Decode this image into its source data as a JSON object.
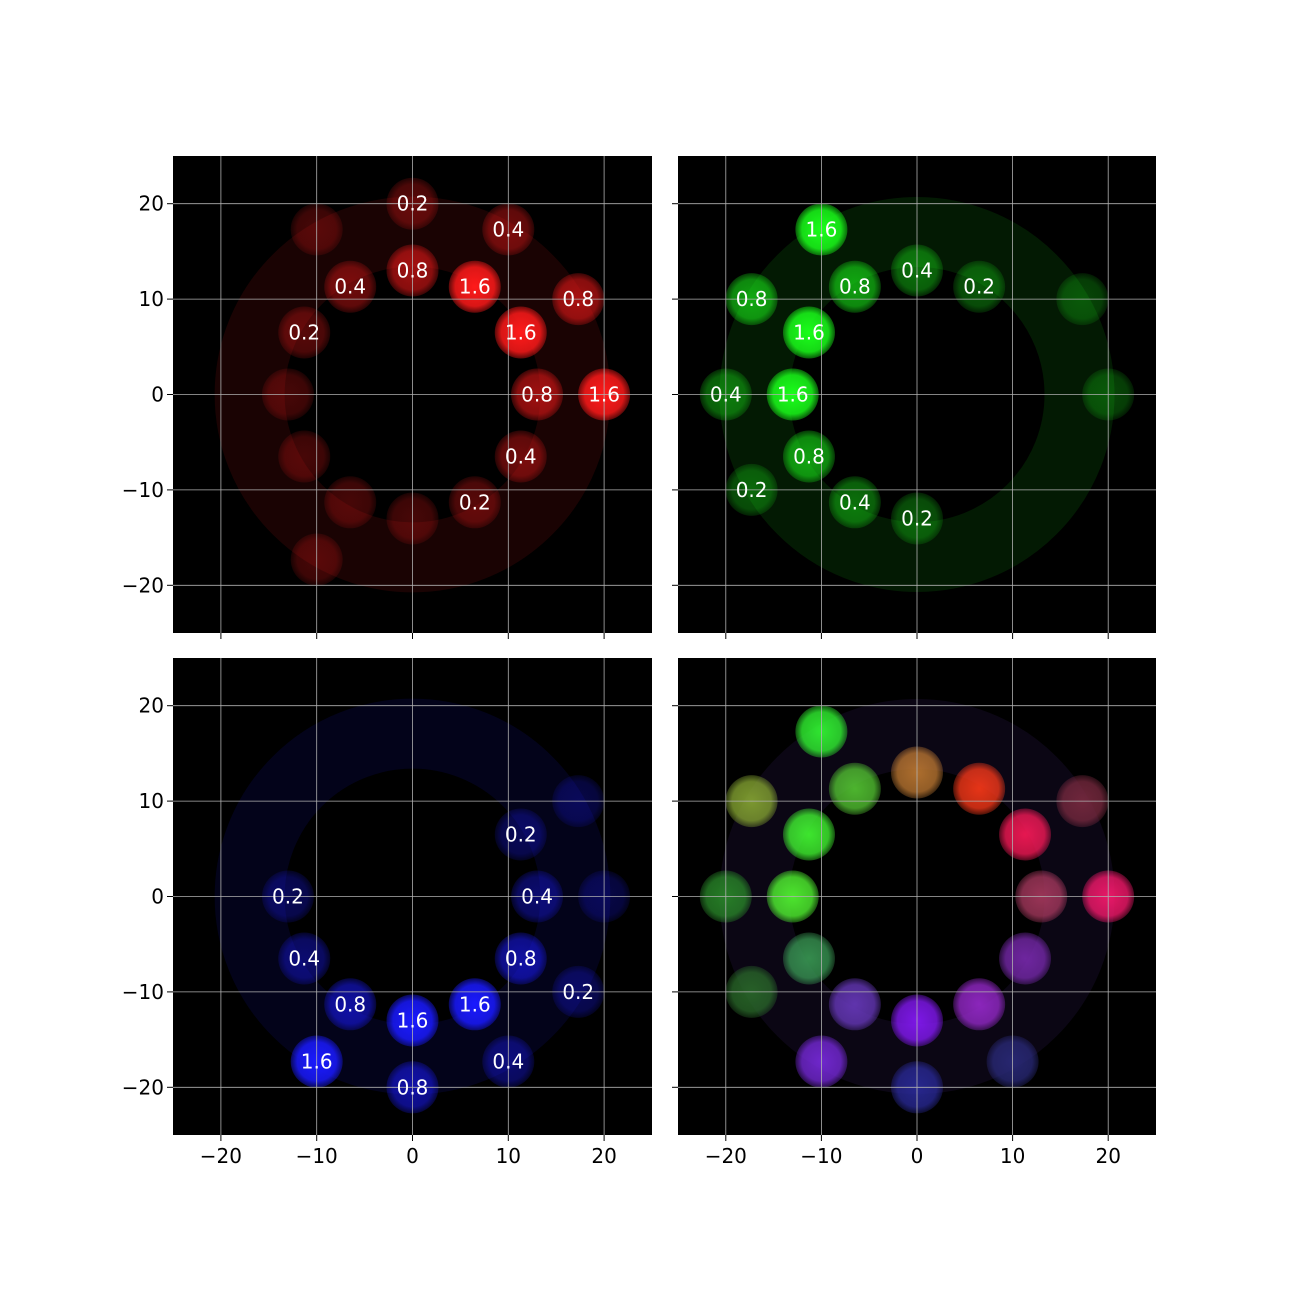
{
  "figure": {
    "background": "#ffffff",
    "label_color": "#ffffff",
    "tick_color": "#000000",
    "grid_color": "#b0b0b0"
  },
  "chart_data": [
    {
      "type": "scatter",
      "panel": "top-left",
      "channel": "red",
      "color": "#ff1a1a",
      "grid": true,
      "xlim": [
        -25,
        25
      ],
      "ylim": [
        -25,
        25
      ],
      "xticks": [
        "−20",
        "−10",
        "0",
        "10",
        "20"
      ],
      "yticks": [
        "20",
        "10",
        "0",
        "−10",
        "−20"
      ],
      "show_xtick_labels": false,
      "show_ytick_labels": true,
      "points": [
        {
          "x": 0,
          "y": 20,
          "label": "0.2"
        },
        {
          "x": 10,
          "y": 17.3,
          "label": "0.4"
        },
        {
          "x": -6.5,
          "y": 11.3,
          "label": "0.4"
        },
        {
          "x": 0,
          "y": 13,
          "label": "0.8"
        },
        {
          "x": 6.5,
          "y": 11.3,
          "label": "1.6"
        },
        {
          "x": 17.3,
          "y": 10,
          "label": "0.8"
        },
        {
          "x": -11.3,
          "y": 6.5,
          "label": "0.2"
        },
        {
          "x": 11.3,
          "y": 6.5,
          "label": "1.6"
        },
        {
          "x": 13,
          "y": 0,
          "label": "0.8"
        },
        {
          "x": 20,
          "y": 0,
          "label": "1.6"
        },
        {
          "x": 11.3,
          "y": -6.5,
          "label": "0.4"
        },
        {
          "x": 6.5,
          "y": -11.3,
          "label": "0.2"
        }
      ],
      "unlabeled_spots": [
        {
          "x": -13,
          "y": 0
        },
        {
          "x": -6.5,
          "y": -11.3
        },
        {
          "x": 0,
          "y": -13
        },
        {
          "x": -10,
          "y": -17.3
        },
        {
          "x": -11.3,
          "y": -6.5
        },
        {
          "x": -10,
          "y": 17.3
        }
      ]
    },
    {
      "type": "scatter",
      "panel": "top-right",
      "channel": "green",
      "color": "#1aff1a",
      "grid": true,
      "xlim": [
        -25,
        25
      ],
      "ylim": [
        -25,
        25
      ],
      "xticks": [
        "−20",
        "−10",
        "0",
        "10",
        "20"
      ],
      "yticks": [
        "20",
        "10",
        "0",
        "−10",
        "−20"
      ],
      "show_xtick_labels": false,
      "show_ytick_labels": false,
      "points": [
        {
          "x": -10,
          "y": 17.3,
          "label": "1.6"
        },
        {
          "x": 0,
          "y": 13,
          "label": "0.4"
        },
        {
          "x": -6.5,
          "y": 11.3,
          "label": "0.8"
        },
        {
          "x": 6.5,
          "y": 11.3,
          "label": "0.2"
        },
        {
          "x": -17.3,
          "y": 10,
          "label": "0.8"
        },
        {
          "x": -11.3,
          "y": 6.5,
          "label": "1.6"
        },
        {
          "x": -20,
          "y": 0,
          "label": "0.4"
        },
        {
          "x": -13,
          "y": 0,
          "label": "1.6"
        },
        {
          "x": -11.3,
          "y": -6.5,
          "label": "0.8"
        },
        {
          "x": -17.3,
          "y": -10,
          "label": "0.2"
        },
        {
          "x": -6.5,
          "y": -11.3,
          "label": "0.4"
        },
        {
          "x": 0,
          "y": -13,
          "label": "0.2"
        }
      ],
      "unlabeled_spots": [
        {
          "x": 20,
          "y": 0
        },
        {
          "x": 17.3,
          "y": 10
        }
      ]
    },
    {
      "type": "scatter",
      "panel": "bottom-left",
      "channel": "blue",
      "color": "#1a1aff",
      "grid": true,
      "xlim": [
        -25,
        25
      ],
      "ylim": [
        -25,
        25
      ],
      "xticks": [
        "−20",
        "−10",
        "0",
        "10",
        "20"
      ],
      "yticks": [
        "20",
        "10",
        "0",
        "−10",
        "−20"
      ],
      "show_xtick_labels": true,
      "show_ytick_labels": true,
      "points": [
        {
          "x": 11.3,
          "y": 6.5,
          "label": "0.2"
        },
        {
          "x": -13,
          "y": 0,
          "label": "0.2"
        },
        {
          "x": 13,
          "y": 0,
          "label": "0.4"
        },
        {
          "x": -11.3,
          "y": -6.5,
          "label": "0.4"
        },
        {
          "x": 11.3,
          "y": -6.5,
          "label": "0.8"
        },
        {
          "x": 17.3,
          "y": -10,
          "label": "0.2"
        },
        {
          "x": -6.5,
          "y": -11.3,
          "label": "0.8"
        },
        {
          "x": 6.5,
          "y": -11.3,
          "label": "1.6"
        },
        {
          "x": 0,
          "y": -13,
          "label": "1.6"
        },
        {
          "x": -10,
          "y": -17.3,
          "label": "1.6"
        },
        {
          "x": 10,
          "y": -17.3,
          "label": "0.4"
        },
        {
          "x": 0,
          "y": -20,
          "label": "0.8"
        }
      ],
      "unlabeled_spots": [
        {
          "x": 20,
          "y": 0
        },
        {
          "x": 17.3,
          "y": 10
        }
      ]
    },
    {
      "type": "scatter",
      "panel": "bottom-right",
      "channel": "composite",
      "grid": true,
      "xlim": [
        -25,
        25
      ],
      "ylim": [
        -25,
        25
      ],
      "xticks": [
        "−20",
        "−10",
        "0",
        "10",
        "20"
      ],
      "yticks": [
        "20",
        "10",
        "0",
        "−10",
        "−20"
      ],
      "show_xtick_labels": true,
      "show_ytick_labels": false,
      "spots": [
        {
          "x": -10,
          "y": 17.3,
          "color": "#33ff33"
        },
        {
          "x": -17.3,
          "y": 10,
          "color": "#88a833"
        },
        {
          "x": -6.5,
          "y": 11.3,
          "color": "#55c833"
        },
        {
          "x": 0,
          "y": 13,
          "color": "#c07a33"
        },
        {
          "x": 6.5,
          "y": 11.3,
          "color": "#ff3a1a"
        },
        {
          "x": 17.3,
          "y": 10,
          "color": "#7a2a40"
        },
        {
          "x": -11.3,
          "y": 6.5,
          "color": "#44ff33"
        },
        {
          "x": 11.3,
          "y": 6.5,
          "color": "#ff1a5a"
        },
        {
          "x": -20,
          "y": 0,
          "color": "#2a8a2a"
        },
        {
          "x": -13,
          "y": 0,
          "color": "#55ff33"
        },
        {
          "x": 13,
          "y": 0,
          "color": "#aa3a60"
        },
        {
          "x": 20,
          "y": 0,
          "color": "#ff1a70"
        },
        {
          "x": -11.3,
          "y": -6.5,
          "color": "#3a9a55"
        },
        {
          "x": 11.3,
          "y": -6.5,
          "color": "#7a2ab0"
        },
        {
          "x": -17.3,
          "y": -10,
          "color": "#2a6a2a"
        },
        {
          "x": -6.5,
          "y": -11.3,
          "color": "#6a3ac0"
        },
        {
          "x": 6.5,
          "y": -11.3,
          "color": "#9a2ad0"
        },
        {
          "x": 0,
          "y": -13,
          "color": "#8a1aff"
        },
        {
          "x": -10,
          "y": -17.3,
          "color": "#7a2ae0"
        },
        {
          "x": 0,
          "y": -20,
          "color": "#2a2a9a"
        },
        {
          "x": 10,
          "y": -17.3,
          "color": "#2a2a7a"
        }
      ]
    }
  ]
}
